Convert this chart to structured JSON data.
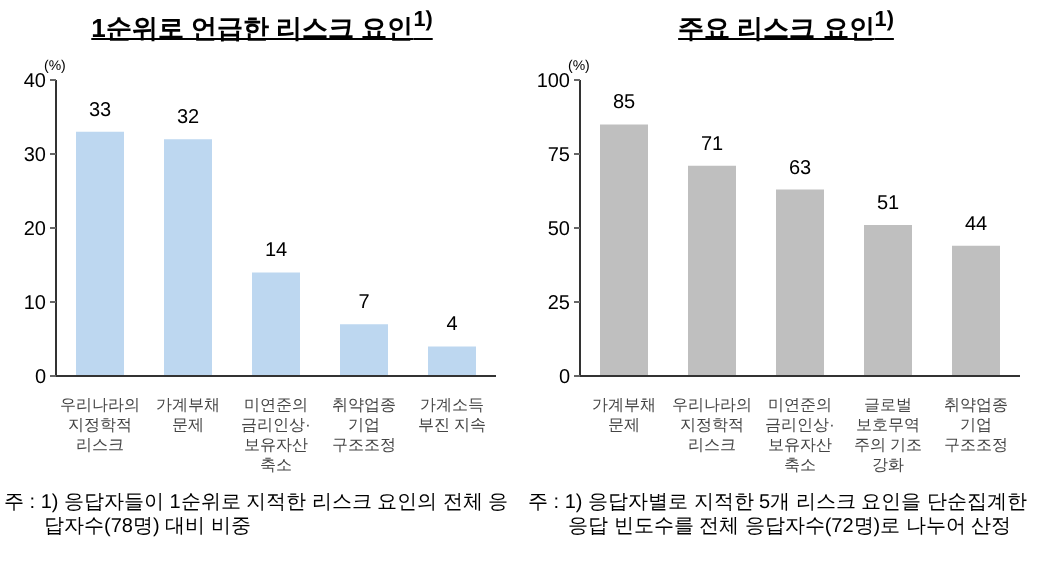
{
  "chart_data": [
    {
      "type": "bar",
      "title": "1순위로 언급한 리스크 요인$^{1)}$",
      "ylabel": "(%)",
      "categories": [
        "우리나라의\n지정학적\n리스크",
        "가계부채\n문제",
        "미연준의\n금리인상·\n보유자산\n축소",
        "취약업종\n기업\n구조조정",
        "가계소득\n부진 지속"
      ],
      "values": [
        33,
        32,
        14,
        7,
        4
      ],
      "color": "#bdd7f0",
      "ylim": [
        0,
        40
      ],
      "yticks": [
        0,
        10,
        20,
        30,
        40
      ],
      "data_labels": true,
      "annotations": [
        "주 : 1) 응답자들이 1순위로 지적한 리스크 요인의 전체 응답자수(78명) 대비 비중"
      ]
    },
    {
      "type": "bar",
      "title": "주요 리스크 요인$^{1)}$",
      "ylabel": "(%)",
      "categories": [
        "가계부채\n문제",
        "우리나라의\n지정학적\n리스크",
        "미연준의\n금리인상·\n보유자산\n축소",
        "글로벌\n보호무역\n주의 기조\n강화",
        "취약업종\n기업\n구조조정"
      ],
      "values": [
        85,
        71,
        63,
        51,
        44
      ],
      "color": "#bfbfbf",
      "ylim": [
        0,
        100
      ],
      "yticks": [
        0,
        25,
        50,
        75,
        100
      ],
      "data_labels": true,
      "annotations": [
        "주 : 1) 응답자별로 지적한 5개 리스크 요인을 단순집계한 응답 빈도수를 전체 응답자수(72명)로 나누어 산정"
      ]
    }
  ]
}
